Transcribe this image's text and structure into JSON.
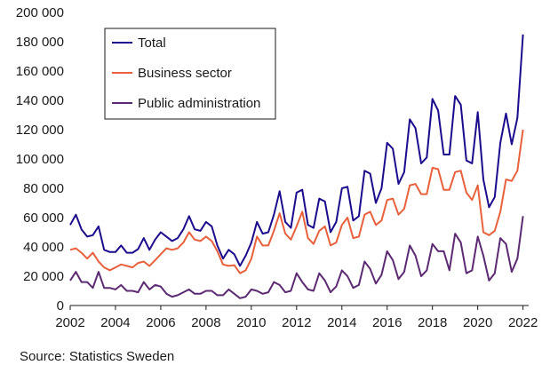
{
  "chart_data": {
    "type": "line",
    "title": "",
    "xlabel": "",
    "ylabel": "",
    "xlim": [
      2002,
      2022.25
    ],
    "ylim": [
      0,
      200000
    ],
    "x_ticks": [
      2002,
      2004,
      2006,
      2008,
      2010,
      2012,
      2014,
      2016,
      2018,
      2020,
      2022
    ],
    "x_tick_labels": [
      "2002",
      "2004",
      "2006",
      "2008",
      "2010",
      "2012",
      "2014",
      "2016",
      "2018",
      "2020",
      "2022"
    ],
    "y_ticks": [
      0,
      20000,
      40000,
      60000,
      80000,
      100000,
      120000,
      140000,
      160000,
      180000,
      200000
    ],
    "y_tick_labels": [
      "0",
      "20 000",
      "40 000",
      "60 000",
      "80 000",
      "100 000",
      "120 000",
      "140 000",
      "160 000",
      "180 000",
      "200 000"
    ],
    "x_start": 2002.0,
    "x_step": 0.25,
    "legend_position": "top-left",
    "series": [
      {
        "name": "Total",
        "color": "#1a0c8c",
        "values": [
          55000,
          62000,
          52000,
          47000,
          48000,
          54000,
          38000,
          36500,
          36500,
          41000,
          36000,
          36000,
          38500,
          46000,
          38000,
          45000,
          50000,
          47000,
          44000,
          46000,
          52000,
          61000,
          52000,
          51000,
          57000,
          54000,
          41000,
          32000,
          38000,
          35000,
          27000,
          34000,
          43000,
          57000,
          49000,
          50000,
          62000,
          78000,
          57000,
          53000,
          77000,
          79000,
          55000,
          53000,
          73000,
          71000,
          50000,
          57000,
          80000,
          81000,
          58000,
          61000,
          92000,
          90000,
          70000,
          80000,
          111000,
          107000,
          83000,
          91000,
          127000,
          121000,
          97000,
          101000,
          141000,
          133000,
          103000,
          103000,
          143000,
          137000,
          99000,
          97000,
          132000,
          86000,
          67000,
          74000,
          111000,
          131000,
          110000,
          128000,
          185000
        ]
      },
      {
        "name": "Business sector",
        "color": "#e8603c",
        "values": [
          38000,
          39000,
          36000,
          32000,
          36000,
          30000,
          26000,
          24000,
          26000,
          28000,
          27000,
          26000,
          29000,
          30000,
          27000,
          31000,
          35000,
          39000,
          38000,
          39000,
          43000,
          50000,
          45000,
          44000,
          47000,
          44000,
          37000,
          28000,
          27000,
          27500,
          22000,
          24000,
          32000,
          47000,
          41000,
          41000,
          51000,
          63000,
          49000,
          45000,
          54000,
          64000,
          46000,
          42000,
          51000,
          54000,
          41000,
          43000,
          55000,
          60000,
          46000,
          47000,
          62000,
          64000,
          55000,
          58000,
          72000,
          73000,
          62000,
          66000,
          82000,
          83000,
          76000,
          76000,
          94000,
          93000,
          79000,
          79000,
          91000,
          92000,
          77000,
          72000,
          82000,
          50000,
          48000,
          51000,
          64000,
          86000,
          85000,
          92000,
          120000
        ]
      },
      {
        "name": "Public administration",
        "color": "#5b2a72",
        "values": [
          17000,
          23000,
          16000,
          16000,
          12000,
          23000,
          12000,
          12000,
          11000,
          14000,
          10000,
          10000,
          9000,
          16000,
          11000,
          14000,
          13000,
          8000,
          6000,
          7000,
          9000,
          11000,
          8000,
          8000,
          10000,
          10000,
          7000,
          7000,
          11000,
          8000,
          5000,
          6000,
          11000,
          10000,
          8000,
          9000,
          16000,
          14000,
          9000,
          10000,
          22000,
          16000,
          11000,
          10000,
          22000,
          17000,
          9000,
          13000,
          24000,
          20000,
          12000,
          14000,
          30000,
          25000,
          15000,
          21000,
          37000,
          31000,
          18000,
          23000,
          41000,
          34000,
          20000,
          24000,
          42000,
          37000,
          37000,
          24000,
          49000,
          43000,
          22000,
          24000,
          47000,
          34000,
          17000,
          22000,
          46000,
          42000,
          23000,
          32000,
          61000
        ]
      }
    ]
  },
  "source": "Source: Statistics Sweden"
}
